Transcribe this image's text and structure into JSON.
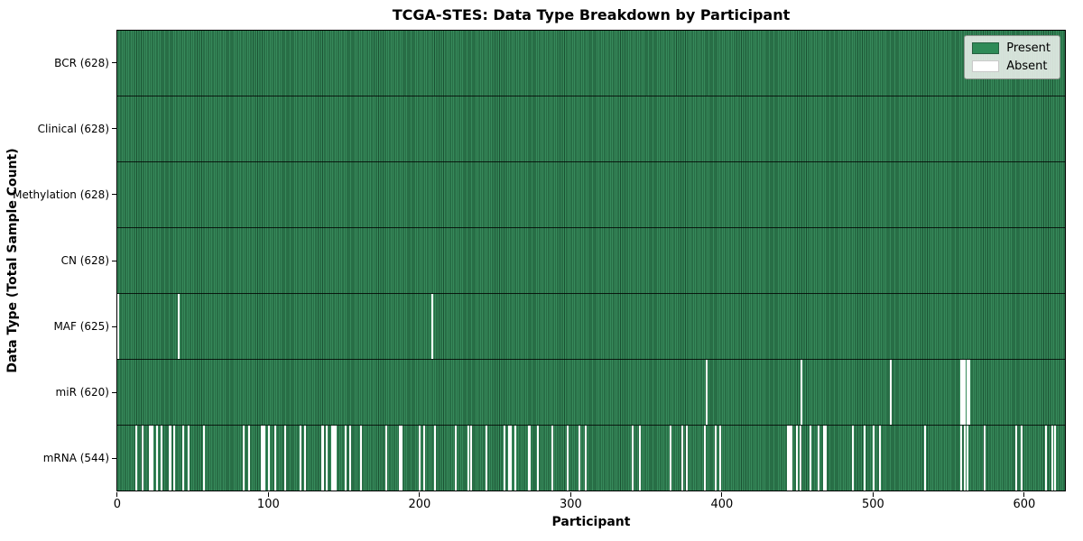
{
  "chart_data": {
    "type": "heatmap",
    "title": "TCGA-STES: Data Type Breakdown by Participant",
    "xlabel": "Participant",
    "ylabel": "Data Type (Total Sample Count)",
    "legend": {
      "present_label": "Present",
      "absent_label": "Absent"
    },
    "legend_position": "upper right",
    "n_participants": 628,
    "x_range": [
      -0.5,
      627.5
    ],
    "x_ticks": [
      0,
      100,
      200,
      300,
      400,
      500,
      600
    ],
    "colors": {
      "present": "#2e8b57",
      "present_stripe_light": "#378a5b",
      "present_stripe_dark": "#1a5132",
      "absent": "#ffffff",
      "row_divider": "rgba(0,0,0,0.8)"
    },
    "rows": [
      {
        "label": "BCR (628)",
        "data_type": "BCR",
        "present_count": 628,
        "absent_participants": []
      },
      {
        "label": "Clinical (628)",
        "data_type": "Clinical",
        "present_count": 628,
        "absent_participants": []
      },
      {
        "label": "Methylation (628)",
        "data_type": "Methylation",
        "present_count": 628,
        "absent_participants": []
      },
      {
        "label": "CN (628)",
        "data_type": "CN",
        "present_count": 628,
        "absent_participants": []
      },
      {
        "label": "MAF (625)",
        "data_type": "MAF",
        "present_count": 625,
        "absent_participants": [
          0,
          40,
          208
        ]
      },
      {
        "label": "miR (620)",
        "data_type": "miR",
        "present_count": 620,
        "absent_participants": [
          390,
          453,
          512,
          559,
          560,
          561,
          563,
          564
        ]
      },
      {
        "label": "mRNA (544)",
        "data_type": "mRNA",
        "present_count": 544,
        "absent_participants": [
          12,
          16,
          21,
          22,
          23,
          26,
          29,
          34,
          35,
          37,
          43,
          47,
          57,
          83,
          87,
          95,
          96,
          97,
          100,
          104,
          111,
          121,
          124,
          135,
          136,
          138,
          142,
          143,
          144,
          151,
          154,
          161,
          178,
          187,
          188,
          200,
          203,
          210,
          224,
          232,
          234,
          244,
          256,
          259,
          260,
          263,
          272,
          273,
          278,
          288,
          298,
          306,
          310,
          341,
          346,
          366,
          374,
          377,
          389,
          396,
          399,
          444,
          445,
          446,
          450,
          452,
          459,
          464,
          468,
          469,
          487,
          495,
          501,
          505,
          535,
          559,
          561,
          563,
          574,
          595,
          599,
          615,
          619,
          621
        ]
      }
    ]
  }
}
